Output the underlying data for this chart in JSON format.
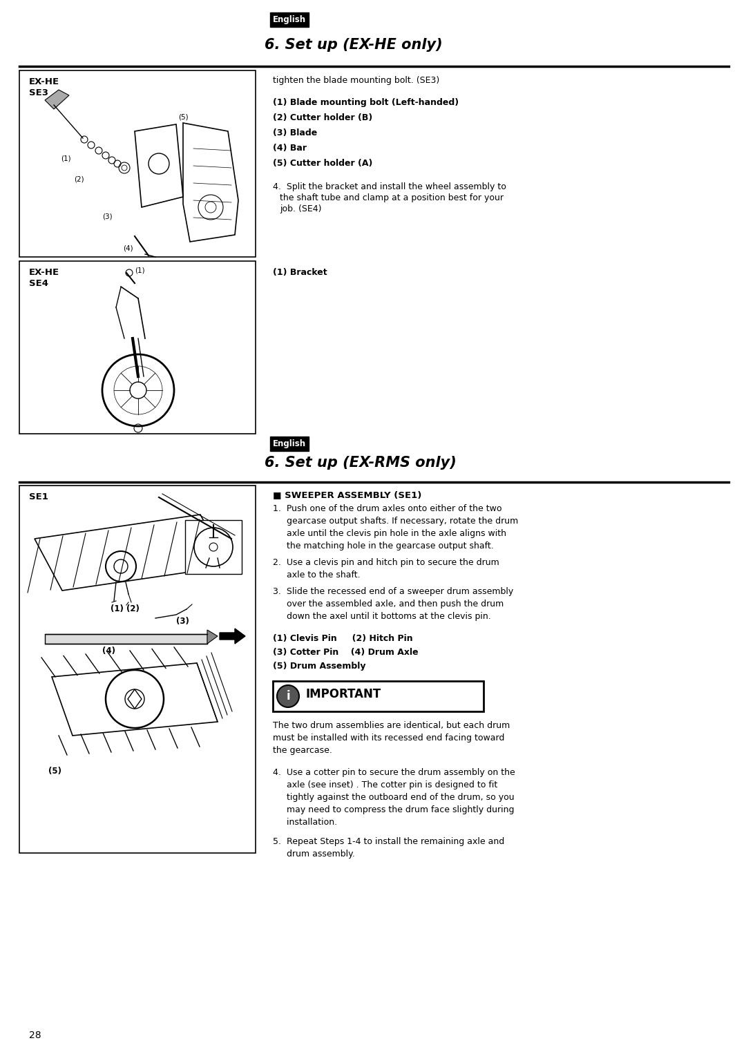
{
  "page_bg": "#ffffff",
  "page_width": 10.8,
  "page_height": 15.26,
  "dpi": 100,
  "page_number": "28",
  "section1_tag": "English",
  "section1_title": "6. Set up (EX-HE only)",
  "section1_intro": "tighten the blade mounting bolt. (SE3)",
  "section1_items": [
    "(1) Blade mounting bolt (Left-handed)",
    "(2) Cutter holder (B)",
    "(3) Blade",
    "(4) Bar",
    "(5) Cutter holder (A)"
  ],
  "section1_para4_line1": "4.  Split the bracket and install the wheel assembly to",
  "section1_para4_line2": "     the shaft tube and clamp at a position best for your",
  "section1_para4_line3": "     job. (SE4)",
  "section1_bracket": "(1) Bracket",
  "box1_label_line1": "EX-HE",
  "box1_label_line2": "SE3",
  "box2_label_line1": "EX-HE",
  "box2_label_line2": "SE4",
  "box3_label": "SE1",
  "section2_tag": "English",
  "section2_title": "6. Set up (EX-RMS only)",
  "section2_sweeper": "■ SWEEPER ASSEMBLY (SE1)",
  "section2_step1_lines": [
    "1.  Push one of the drum axles onto either of the two",
    "     gearcase output shafts. If necessary, rotate the drum",
    "     axle until the clevis pin hole in the axle aligns with",
    "     the matching hole in the gearcase output shaft."
  ],
  "section2_step2_lines": [
    "2.  Use a clevis pin and hitch pin to secure the drum",
    "     axle to the shaft."
  ],
  "section2_step3_lines": [
    "3.  Slide the recessed end of a sweeper drum assembly",
    "     over the assembled axle, and then push the drum",
    "     down the axel until it bottoms at the clevis pin."
  ],
  "section2_items_line1": "(1) Clevis Pin     (2) Hitch Pin",
  "section2_items_line2": "(3) Cotter Pin    (4) Drum Axle",
  "section2_items_line3": "(5) Drum Assembly",
  "important_label": "  IMPORTANT",
  "important_text_lines": [
    "The two drum assemblies are identical, but each drum",
    "must be installed with its recessed end facing toward",
    "the gearcase."
  ],
  "section2_step4_lines": [
    "4.  Use a cotter pin to secure the drum assembly on the",
    "     axle (see inset) . The cotter pin is designed to fit",
    "     tightly against the outboard end of the drum, so you",
    "     may need to compress the drum face slightly during",
    "     installation."
  ],
  "section2_step5_lines": [
    "5.  Repeat Steps 1-4 to install the remaining axle and",
    "     drum assembly."
  ]
}
